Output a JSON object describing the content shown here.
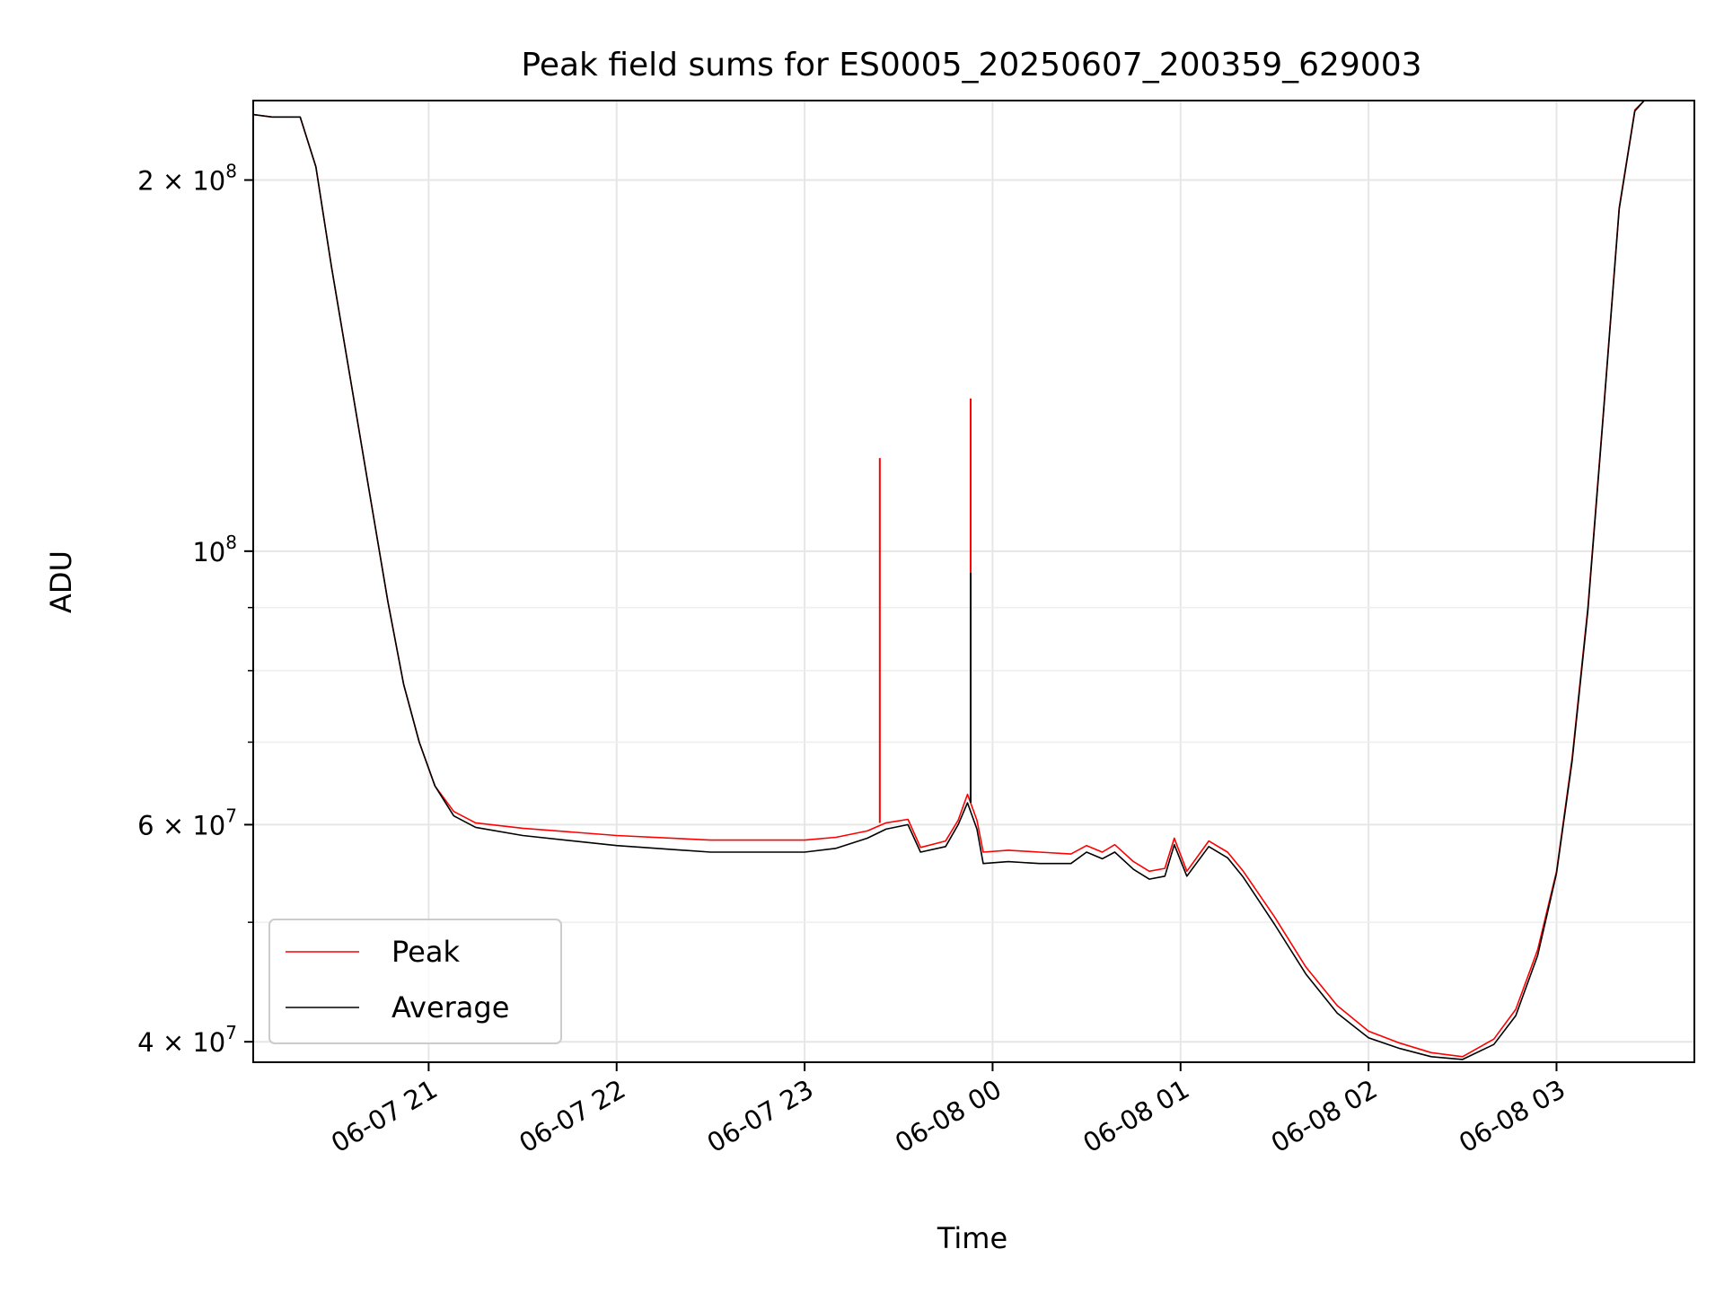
{
  "chart_data": {
    "type": "line",
    "title": "Peak field sums for ES0005_20250607_200359_629003",
    "xlabel": "Time",
    "ylabel": "ADU",
    "yscale": "log",
    "ylim": [
      38500000,
      232000000
    ],
    "xlim": [
      "2025-06-07 20:04",
      "2025-06-08 03:44"
    ],
    "grid": true,
    "legend": "lower-left",
    "x_ticks": [
      {
        "t": "2025-06-07 21:00",
        "label": "06-07 21"
      },
      {
        "t": "2025-06-07 22:00",
        "label": "06-07 22"
      },
      {
        "t": "2025-06-07 23:00",
        "label": "06-07 23"
      },
      {
        "t": "2025-06-08 00:00",
        "label": "06-08 00"
      },
      {
        "t": "2025-06-08 01:00",
        "label": "06-08 01"
      },
      {
        "t": "2025-06-08 02:00",
        "label": "06-08 02"
      },
      {
        "t": "2025-06-08 03:00",
        "label": "06-08 03"
      }
    ],
    "y_major_ticks": [
      {
        "v": 40000000,
        "mant": "4",
        "exp": "7"
      },
      {
        "v": 60000000,
        "mant": "6",
        "exp": "7"
      },
      {
        "v": 100000000,
        "mant": "",
        "exp": "8"
      },
      {
        "v": 200000000,
        "mant": "2",
        "exp": "8"
      }
    ],
    "y_minor_ticks": [
      50000000,
      70000000,
      80000000,
      90000000
    ],
    "series": [
      {
        "name": "Peak",
        "color": "#ff0000",
        "points": [
          [
            "2025-06-07 20:04",
            226000000
          ],
          [
            "2025-06-07 20:10",
            225000000
          ],
          [
            "2025-06-07 20:19",
            225000000
          ],
          [
            "2025-06-07 20:24",
            205000000
          ],
          [
            "2025-06-07 20:29",
            170000000
          ],
          [
            "2025-06-07 20:35",
            138000000
          ],
          [
            "2025-06-07 20:41",
            112000000
          ],
          [
            "2025-06-07 20:47",
            91000000
          ],
          [
            "2025-06-07 20:52",
            78000000
          ],
          [
            "2025-06-07 20:57",
            70000000
          ],
          [
            "2025-06-07 21:02",
            64500000
          ],
          [
            "2025-06-07 21:08",
            61500000
          ],
          [
            "2025-06-07 21:15",
            60200000
          ],
          [
            "2025-06-07 21:30",
            59600000
          ],
          [
            "2025-06-07 22:00",
            58800000
          ],
          [
            "2025-06-07 22:30",
            58300000
          ],
          [
            "2025-06-07 23:00",
            58300000
          ],
          [
            "2025-06-07 23:10",
            58600000
          ],
          [
            "2025-06-07 23:20",
            59300000
          ],
          [
            "2025-06-07 23:26",
            60200000
          ],
          [
            "2025-06-07 23:33",
            60600000
          ],
          [
            "2025-06-07 23:37",
            57500000
          ],
          [
            "2025-06-07 23:45",
            58200000
          ],
          [
            "2025-06-07 23:49",
            60500000
          ],
          [
            "2025-06-07 23:52",
            63500000
          ],
          [
            "2025-06-07 23:55",
            60500000
          ],
          [
            "2025-06-07 23:57",
            57000000
          ],
          [
            "2025-06-08 00:05",
            57200000
          ],
          [
            "2025-06-08 00:15",
            57000000
          ],
          [
            "2025-06-08 00:25",
            56800000
          ],
          [
            "2025-06-08 00:30",
            57700000
          ],
          [
            "2025-06-08 00:35",
            57000000
          ],
          [
            "2025-06-08 00:39",
            57800000
          ],
          [
            "2025-06-08 00:45",
            56000000
          ],
          [
            "2025-06-08 00:50",
            55000000
          ],
          [
            "2025-06-08 00:55",
            55300000
          ],
          [
            "2025-06-08 00:58",
            58500000
          ],
          [
            "2025-06-08 01:02",
            55000000
          ],
          [
            "2025-06-08 01:09",
            58200000
          ],
          [
            "2025-06-08 01:15",
            57000000
          ],
          [
            "2025-06-08 01:20",
            55000000
          ],
          [
            "2025-06-08 01:30",
            50500000
          ],
          [
            "2025-06-08 01:40",
            46000000
          ],
          [
            "2025-06-08 01:50",
            42800000
          ],
          [
            "2025-06-08 02:00",
            40800000
          ],
          [
            "2025-06-08 02:10",
            39900000
          ],
          [
            "2025-06-08 02:20",
            39200000
          ],
          [
            "2025-06-08 02:30",
            38900000
          ],
          [
            "2025-06-08 02:40",
            40200000
          ],
          [
            "2025-06-08 02:47",
            42500000
          ],
          [
            "2025-06-08 02:54",
            47500000
          ],
          [
            "2025-06-08 03:00",
            55000000
          ],
          [
            "2025-06-08 03:05",
            68000000
          ],
          [
            "2025-06-08 03:10",
            90000000
          ],
          [
            "2025-06-08 03:15",
            130000000
          ],
          [
            "2025-06-08 03:20",
            190000000
          ],
          [
            "2025-06-08 03:25",
            228000000
          ],
          [
            "2025-06-08 03:28",
            232000000
          ],
          [
            "2025-06-08 03:44",
            232000000
          ]
        ],
        "spikes": [
          [
            "2025-06-07 23:24",
            119000000
          ],
          [
            "2025-06-07 23:53",
            133000000
          ]
        ]
      },
      {
        "name": "Average",
        "color": "#000000",
        "points": [
          [
            "2025-06-07 20:04",
            226000000
          ],
          [
            "2025-06-07 20:10",
            225000000
          ],
          [
            "2025-06-07 20:19",
            225000000
          ],
          [
            "2025-06-07 20:24",
            205000000
          ],
          [
            "2025-06-07 20:29",
            170000000
          ],
          [
            "2025-06-07 20:35",
            138000000
          ],
          [
            "2025-06-07 20:41",
            112000000
          ],
          [
            "2025-06-07 20:47",
            91000000
          ],
          [
            "2025-06-07 20:52",
            78000000
          ],
          [
            "2025-06-07 20:57",
            70000000
          ],
          [
            "2025-06-07 21:02",
            64500000
          ],
          [
            "2025-06-07 21:08",
            61000000
          ],
          [
            "2025-06-07 21:15",
            59700000
          ],
          [
            "2025-06-07 21:30",
            58800000
          ],
          [
            "2025-06-07 22:00",
            57700000
          ],
          [
            "2025-06-07 22:30",
            57000000
          ],
          [
            "2025-06-07 23:00",
            57000000
          ],
          [
            "2025-06-07 23:10",
            57400000
          ],
          [
            "2025-06-07 23:20",
            58500000
          ],
          [
            "2025-06-07 23:26",
            59500000
          ],
          [
            "2025-06-07 23:33",
            60000000
          ],
          [
            "2025-06-07 23:37",
            57000000
          ],
          [
            "2025-06-07 23:45",
            57600000
          ],
          [
            "2025-06-07 23:49",
            60000000
          ],
          [
            "2025-06-07 23:52",
            62500000
          ],
          [
            "2025-06-07 23:55",
            59500000
          ],
          [
            "2025-06-07 23:57",
            55800000
          ],
          [
            "2025-06-08 00:05",
            56000000
          ],
          [
            "2025-06-08 00:15",
            55800000
          ],
          [
            "2025-06-08 00:25",
            55800000
          ],
          [
            "2025-06-08 00:30",
            57000000
          ],
          [
            "2025-06-08 00:35",
            56300000
          ],
          [
            "2025-06-08 00:39",
            57000000
          ],
          [
            "2025-06-08 00:45",
            55200000
          ],
          [
            "2025-06-08 00:50",
            54200000
          ],
          [
            "2025-06-08 00:55",
            54500000
          ],
          [
            "2025-06-08 00:58",
            57800000
          ],
          [
            "2025-06-08 01:02",
            54500000
          ],
          [
            "2025-06-08 01:09",
            57600000
          ],
          [
            "2025-06-08 01:15",
            56400000
          ],
          [
            "2025-06-08 01:20",
            54400000
          ],
          [
            "2025-06-08 01:30",
            49800000
          ],
          [
            "2025-06-08 01:40",
            45400000
          ],
          [
            "2025-06-08 01:50",
            42200000
          ],
          [
            "2025-06-08 02:00",
            40300000
          ],
          [
            "2025-06-08 02:10",
            39500000
          ],
          [
            "2025-06-08 02:20",
            38900000
          ],
          [
            "2025-06-08 02:30",
            38700000
          ],
          [
            "2025-06-08 02:40",
            39800000
          ],
          [
            "2025-06-08 02:47",
            42000000
          ],
          [
            "2025-06-08 02:54",
            47000000
          ],
          [
            "2025-06-08 03:00",
            54800000
          ],
          [
            "2025-06-08 03:05",
            67600000
          ],
          [
            "2025-06-08 03:10",
            89500000
          ],
          [
            "2025-06-08 03:15",
            129500000
          ],
          [
            "2025-06-08 03:20",
            189500000
          ],
          [
            "2025-06-08 03:25",
            227500000
          ],
          [
            "2025-06-08 03:28",
            232000000
          ],
          [
            "2025-06-08 03:44",
            232000000
          ]
        ],
        "spikes": [
          [
            "2025-06-07 23:53",
            96000000
          ]
        ]
      }
    ]
  }
}
